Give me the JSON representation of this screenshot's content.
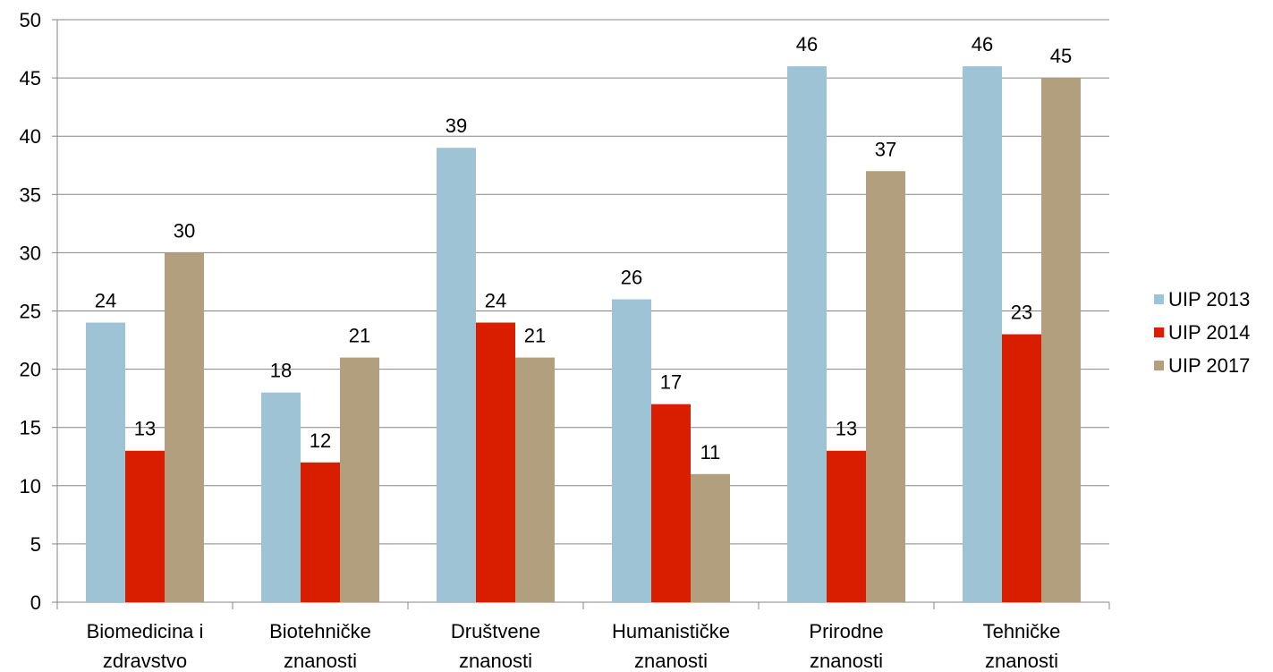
{
  "chart_data": {
    "type": "bar",
    "title": "",
    "xlabel": "",
    "ylabel": "",
    "ylim": [
      0,
      50
    ],
    "yticks": [
      0,
      5,
      10,
      15,
      20,
      25,
      30,
      35,
      40,
      45,
      50
    ],
    "grid": true,
    "legend_position": "right",
    "categories": [
      [
        "Biomedicina i",
        "zdravstvo"
      ],
      [
        "Biotehničke",
        "znanosti"
      ],
      [
        "Društvene",
        "znanosti"
      ],
      [
        "Humanističke",
        "znanosti"
      ],
      [
        "Prirodne",
        "znanosti"
      ],
      [
        "Tehničke",
        "znanosti"
      ]
    ],
    "series": [
      {
        "name": "UIP 2013",
        "color": "#9dc3d5",
        "values": [
          24,
          18,
          39,
          26,
          46,
          46
        ]
      },
      {
        "name": "UIP 2014",
        "color": "#d91e00",
        "values": [
          13,
          12,
          24,
          17,
          13,
          23
        ]
      },
      {
        "name": "UIP 2017",
        "color": "#b19f7e",
        "values": [
          30,
          21,
          21,
          11,
          37,
          45
        ]
      }
    ]
  }
}
